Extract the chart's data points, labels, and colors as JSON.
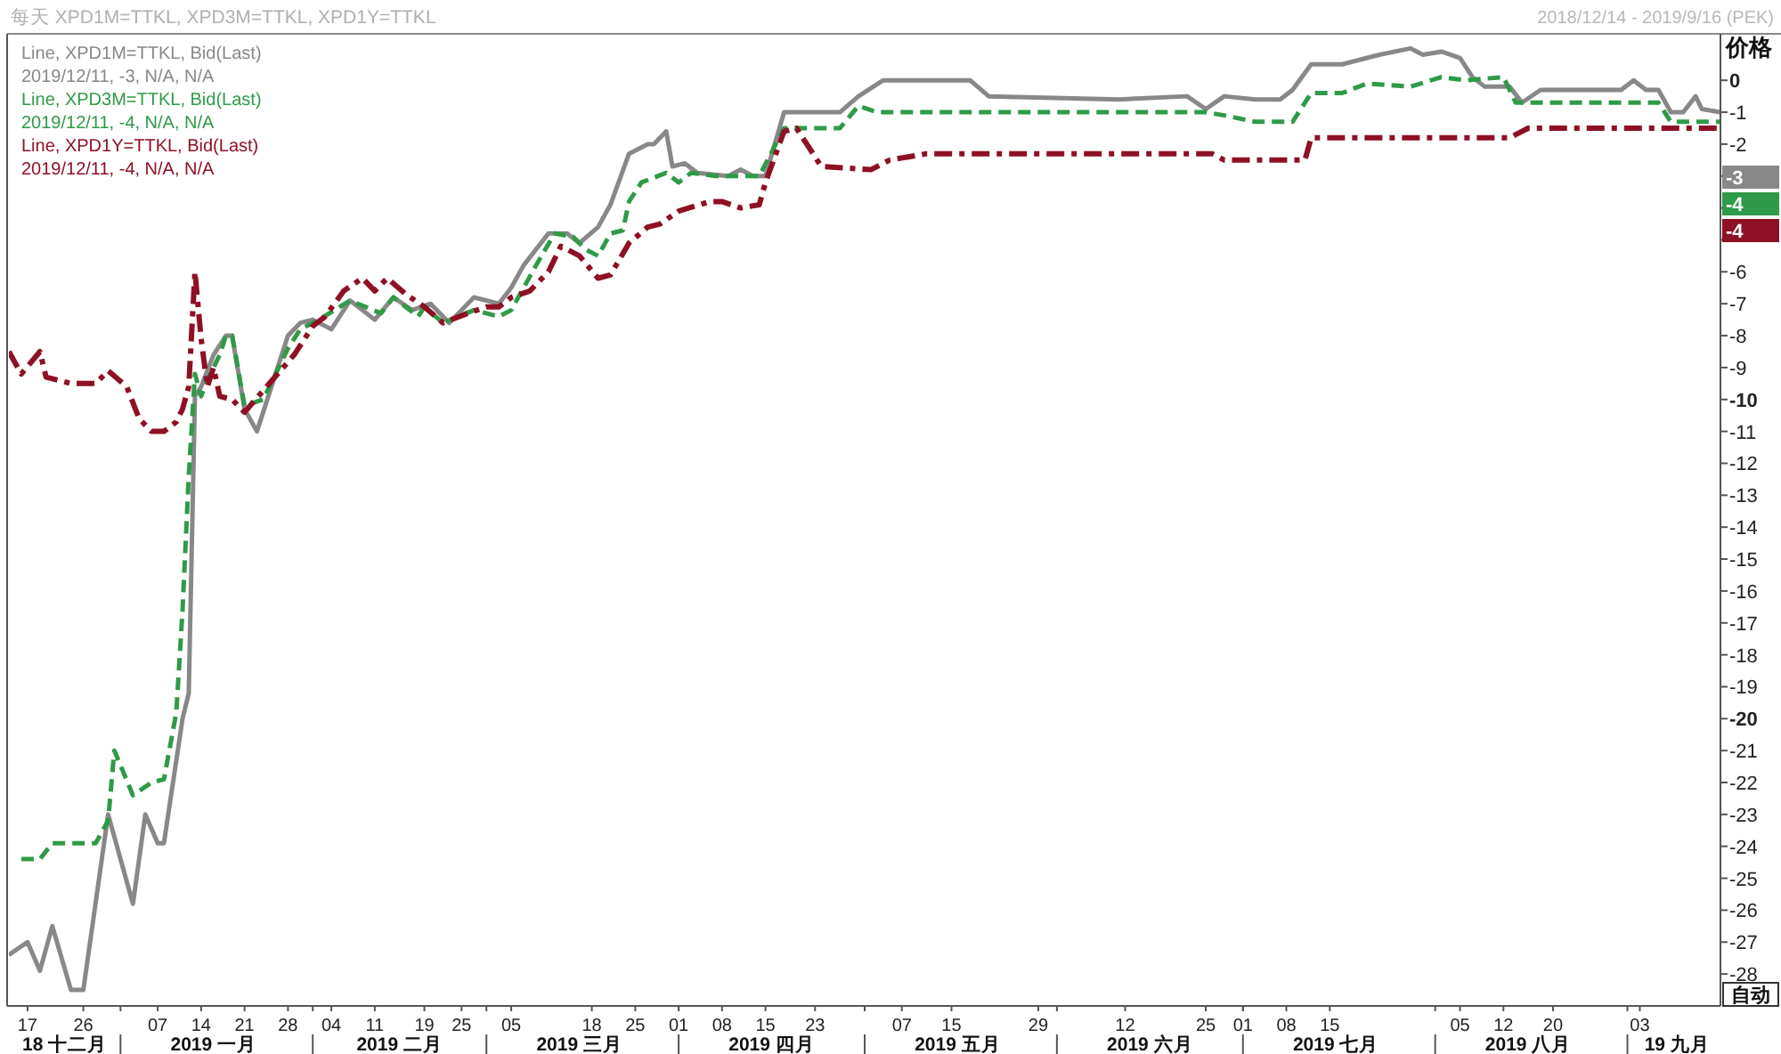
{
  "chart_data": {
    "type": "line",
    "title": "每天 XPD1M=TTKL, XPD3M=TTKL, XPD1Y=TTKL",
    "subtitle": "2018/12/14 - 2019/9/16 (PEK)",
    "ylabel": "价格",
    "xlim": [
      "2018-12-14",
      "2019-09-16"
    ],
    "xticks": [
      {
        "value": "2018-12-17",
        "label": "17"
      },
      {
        "value": "2018-12-26",
        "label": "26"
      },
      {
        "value": "2019-01-07",
        "label": "07"
      },
      {
        "value": "2019-01-14",
        "label": "14"
      },
      {
        "value": "2019-01-21",
        "label": "21"
      },
      {
        "value": "2019-01-28",
        "label": "28"
      },
      {
        "value": "2019-02-04",
        "label": "04"
      },
      {
        "value": "2019-02-11",
        "label": "11"
      },
      {
        "value": "2019-02-19",
        "label": "19"
      },
      {
        "value": "2019-02-25",
        "label": "25"
      },
      {
        "value": "2019-03-05",
        "label": "05"
      },
      {
        "value": "2019-03-18",
        "label": "18"
      },
      {
        "value": "2019-03-25",
        "label": "25"
      },
      {
        "value": "2019-04-01",
        "label": "01"
      },
      {
        "value": "2019-04-08",
        "label": "08"
      },
      {
        "value": "2019-04-15",
        "label": "15"
      },
      {
        "value": "2019-04-23",
        "label": "23"
      },
      {
        "value": "2019-05-07",
        "label": "07"
      },
      {
        "value": "2019-05-15",
        "label": "15"
      },
      {
        "value": "2019-05-29",
        "label": "29"
      },
      {
        "value": "2019-06-12",
        "label": "12"
      },
      {
        "value": "2019-06-25",
        "label": "25"
      },
      {
        "value": "2019-07-01",
        "label": "01"
      },
      {
        "value": "2019-07-08",
        "label": "08"
      },
      {
        "value": "2019-07-15",
        "label": "15"
      },
      {
        "value": "2019-08-05",
        "label": "05"
      },
      {
        "value": "2019-08-12",
        "label": "12"
      },
      {
        "value": "2019-08-20",
        "label": "20"
      },
      {
        "value": "2019-09-03",
        "label": "03"
      }
    ],
    "x2lim": [
      "2018-12-14",
      "2019-09-16"
    ],
    "x2ticks": [
      {
        "value": "2018-12-23",
        "label": "18 十二月"
      },
      {
        "value": "2019-01-01",
        "label": null
      },
      {
        "value": "2019-01-16",
        "label": "2019 一月"
      },
      {
        "value": "2019-02-01",
        "label": null
      },
      {
        "value": "2019-02-15",
        "label": "2019 二月"
      },
      {
        "value": "2019-03-01",
        "label": null
      },
      {
        "value": "2019-03-16",
        "label": "2019 三月"
      },
      {
        "value": "2019-04-01",
        "label": null
      },
      {
        "value": "2019-04-16",
        "label": "2019 四月"
      },
      {
        "value": "2019-05-01",
        "label": null
      },
      {
        "value": "2019-05-16",
        "label": "2019 五月"
      },
      {
        "value": "2019-06-01",
        "label": null
      },
      {
        "value": "2019-06-16",
        "label": "2019 六月"
      },
      {
        "value": "2019-07-01",
        "label": null
      },
      {
        "value": "2019-07-16",
        "label": "2019 七月"
      },
      {
        "value": "2019-08-01",
        "label": null
      },
      {
        "value": "2019-08-16",
        "label": "2019 八月"
      },
      {
        "value": "2019-09-01",
        "label": null
      },
      {
        "value": "2019-09-09",
        "label": "19 九月"
      }
    ],
    "ylim": [
      -29,
      1.4
    ],
    "yticks": [
      0,
      -1,
      -2,
      {
        "value": -3,
        "label": null
      },
      {
        "value": -4,
        "label": null
      },
      {
        "value": -5,
        "label": null
      },
      -6,
      -7,
      -8,
      -9,
      -10,
      -11,
      -12,
      -13,
      -14,
      -15,
      -16,
      -17,
      -18,
      -19,
      -20,
      -21,
      -22,
      -23,
      -24,
      -25,
      -26,
      -27,
      -28
    ],
    "legend": "top left",
    "series": [
      {
        "name": "Line, XPD1M=TTKL, Bid(Last)",
        "color": "#888888",
        "line_style": "solid",
        "x": [
          "2018-12-14",
          "2018-12-17",
          "2018-12-19",
          "2018-12-21",
          "2018-12-24",
          "2018-12-26",
          "2018-12-30",
          "2019-01-03",
          "2019-01-05",
          "2019-01-07",
          "2019-01-08",
          "2019-01-11",
          "2019-01-12",
          "2019-01-13",
          "2019-01-14",
          "2019-01-16",
          "2019-01-18",
          "2019-01-19",
          "2019-01-21",
          "2019-01-23",
          "2019-01-28",
          "2019-01-30",
          "2019-02-01",
          "2019-02-04",
          "2019-02-07",
          "2019-02-11",
          "2019-02-14",
          "2019-02-17",
          "2019-02-20",
          "2019-02-23",
          "2019-02-27",
          "2019-03-03",
          "2019-03-05",
          "2019-03-07",
          "2019-03-11",
          "2019-03-14",
          "2019-03-16",
          "2019-03-19",
          "2019-03-21",
          "2019-03-24",
          "2019-03-27",
          "2019-03-28",
          "2019-03-30",
          "2019-03-31",
          "2019-04-02",
          "2019-04-04",
          "2019-04-09",
          "2019-04-11",
          "2019-04-13",
          "2019-04-15",
          "2019-04-18",
          "2019-04-27",
          "2019-04-30",
          "2019-05-04",
          "2019-05-18",
          "2019-05-21",
          "2019-06-11",
          "2019-06-22",
          "2019-06-25",
          "2019-06-28",
          "2019-07-03",
          "2019-07-07",
          "2019-07-09",
          "2019-07-12",
          "2019-07-17",
          "2019-07-23",
          "2019-07-28",
          "2019-07-30",
          "2019-08-02",
          "2019-08-05",
          "2019-08-07",
          "2019-08-09",
          "2019-08-13",
          "2019-08-15",
          "2019-08-18",
          "2019-08-31",
          "2019-09-02",
          "2019-09-04",
          "2019-09-06",
          "2019-09-08",
          "2019-09-10",
          "2019-09-12",
          "2019-09-13",
          "2019-09-16"
        ],
        "values": [
          -27.4,
          -27.0,
          -27.9,
          -26.5,
          -28.5,
          -28.5,
          -23.0,
          -25.8,
          -23.0,
          -23.9,
          -23.9,
          -20.0,
          -19.2,
          -9.9,
          -9.6,
          -8.6,
          -8.0,
          -8.0,
          -10.3,
          -11.0,
          -8.0,
          -7.6,
          -7.5,
          -7.8,
          -6.9,
          -7.5,
          -6.8,
          -7.2,
          -7.0,
          -7.6,
          -6.8,
          -7.0,
          -6.5,
          -5.8,
          -4.8,
          -4.8,
          -5.1,
          -4.6,
          -3.9,
          -2.3,
          -2.0,
          -2.0,
          -1.6,
          -2.7,
          -2.6,
          -2.9,
          -3.0,
          -2.8,
          -3.0,
          -3.0,
          -1.0,
          -1.0,
          -0.5,
          0.0,
          0.0,
          -0.5,
          -0.6,
          -0.5,
          -0.9,
          -0.5,
          -0.6,
          -0.6,
          -0.3,
          0.5,
          0.5,
          0.8,
          1.0,
          0.8,
          0.9,
          0.7,
          0.1,
          -0.2,
          -0.2,
          -0.7,
          -0.3,
          -0.3,
          0.0,
          -0.3,
          -0.3,
          -1.0,
          -1.0,
          -0.5,
          -0.9,
          -1.0
        ]
      },
      {
        "name": "Line, XPD3M=TTKL, Bid(Last)",
        "color": "#2f9a48",
        "line_style": "dashed",
        "x": [
          "2018-12-16",
          "2018-12-19",
          "2018-12-21",
          "2018-12-28",
          "2018-12-30",
          "2018-12-31",
          "2019-01-03",
          "2019-01-06",
          "2019-01-08",
          "2019-01-10",
          "2019-01-11",
          "2019-01-12",
          "2019-01-13",
          "2019-01-14",
          "2019-01-15",
          "2019-01-17",
          "2019-01-18",
          "2019-01-19",
          "2019-01-21",
          "2019-01-24",
          "2019-01-28",
          "2019-01-30",
          "2019-02-02",
          "2019-02-07",
          "2019-02-12",
          "2019-02-14",
          "2019-02-18",
          "2019-02-19",
          "2019-02-22",
          "2019-02-27",
          "2019-03-03",
          "2019-03-05",
          "2019-03-09",
          "2019-03-12",
          "2019-03-15",
          "2019-03-17",
          "2019-03-19",
          "2019-03-21",
          "2019-03-23",
          "2019-03-24",
          "2019-03-26",
          "2019-03-30",
          "2019-04-01",
          "2019-04-03",
          "2019-04-07",
          "2019-04-14",
          "2019-04-18",
          "2019-04-27",
          "2019-04-30",
          "2019-05-03",
          "2019-06-25",
          "2019-06-28",
          "2019-07-03",
          "2019-07-09",
          "2019-07-12",
          "2019-07-17",
          "2019-07-21",
          "2019-07-28",
          "2019-08-02",
          "2019-08-06",
          "2019-08-12",
          "2019-08-14",
          "2019-09-06",
          "2019-09-08",
          "2019-09-16"
        ],
        "values": [
          -24.4,
          -24.4,
          -23.9,
          -23.9,
          -23.2,
          -21.0,
          -22.4,
          -22.0,
          -21.9,
          -19.8,
          -16.6,
          -12.4,
          -9.2,
          -9.9,
          -9.4,
          -8.6,
          -8.0,
          -8.0,
          -10.2,
          -10.0,
          -8.4,
          -7.8,
          -7.5,
          -6.9,
          -7.3,
          -6.8,
          -7.4,
          -7.1,
          -7.6,
          -7.2,
          -7.4,
          -7.2,
          -5.8,
          -4.8,
          -4.9,
          -5.3,
          -5.5,
          -4.8,
          -4.7,
          -3.8,
          -3.2,
          -2.9,
          -3.2,
          -2.9,
          -3.0,
          -3.0,
          -1.5,
          -1.5,
          -0.8,
          -1.0,
          -1.0,
          -1.1,
          -1.3,
          -1.3,
          -0.4,
          -0.4,
          -0.1,
          -0.2,
          0.1,
          0.0,
          0.1,
          -0.7,
          -0.7,
          -1.3,
          -1.3
        ]
      },
      {
        "name": "Line, XPD1Y=TTKL, Bid(Last)",
        "color": "#8e1024",
        "line_style": "dashdot",
        "x": [
          "2018-12-14",
          "2018-12-16",
          "2018-12-19",
          "2018-12-20",
          "2018-12-24",
          "2018-12-28",
          "2018-12-30",
          "2019-01-02",
          "2019-01-04",
          "2019-01-06",
          "2019-01-08",
          "2019-01-10",
          "2019-01-11",
          "2019-01-12",
          "2019-01-13",
          "2019-01-14",
          "2019-01-15",
          "2019-01-16",
          "2019-01-17",
          "2019-01-19",
          "2019-01-21",
          "2019-01-25",
          "2019-01-29",
          "2019-02-01",
          "2019-02-03",
          "2019-02-06",
          "2019-02-09",
          "2019-02-11",
          "2019-02-13",
          "2019-02-16",
          "2019-02-19",
          "2019-02-22",
          "2019-02-26",
          "2019-03-01",
          "2019-03-03",
          "2019-03-05",
          "2019-03-08",
          "2019-03-11",
          "2019-03-13",
          "2019-03-16",
          "2019-03-19",
          "2019-03-21",
          "2019-03-24",
          "2019-03-27",
          "2019-03-29",
          "2019-04-01",
          "2019-04-06",
          "2019-04-08",
          "2019-04-11",
          "2019-04-14",
          "2019-04-15",
          "2019-04-18",
          "2019-04-20",
          "2019-04-22",
          "2019-04-24",
          "2019-05-02",
          "2019-05-05",
          "2019-05-11",
          "2019-06-26",
          "2019-06-28",
          "2019-07-11",
          "2019-07-12",
          "2019-08-13",
          "2019-08-16",
          "2019-09-16"
        ],
        "values": [
          -8.5,
          -9.2,
          -8.5,
          -9.3,
          -9.5,
          -9.5,
          -9.1,
          -9.6,
          -10.6,
          -11.0,
          -11.0,
          -10.7,
          -10.3,
          -9.6,
          -6.0,
          -8.1,
          -9.6,
          -9.0,
          -9.9,
          -10.0,
          -10.4,
          -9.5,
          -8.6,
          -7.7,
          -7.4,
          -6.6,
          -6.2,
          -6.6,
          -6.2,
          -6.7,
          -7.1,
          -7.6,
          -7.3,
          -7.1,
          -7.1,
          -6.8,
          -6.6,
          -6.0,
          -5.2,
          -5.5,
          -6.2,
          -6.1,
          -5.1,
          -4.6,
          -4.5,
          -4.1,
          -3.8,
          -3.8,
          -4.0,
          -3.9,
          -3.2,
          -1.6,
          -1.5,
          -2.1,
          -2.7,
          -2.8,
          -2.5,
          -2.3,
          -2.3,
          -2.5,
          -2.5,
          -1.8,
          -1.8,
          -1.5,
          -1.5
        ]
      }
    ],
    "annotations": [
      "2019/12/11, -3, N/A, N/A",
      "2019/12/11, -4, N/A, N/A",
      "2019/12/11, -4, N/A, N/A",
      "-3",
      "-4",
      "-4",
      "自动"
    ]
  }
}
